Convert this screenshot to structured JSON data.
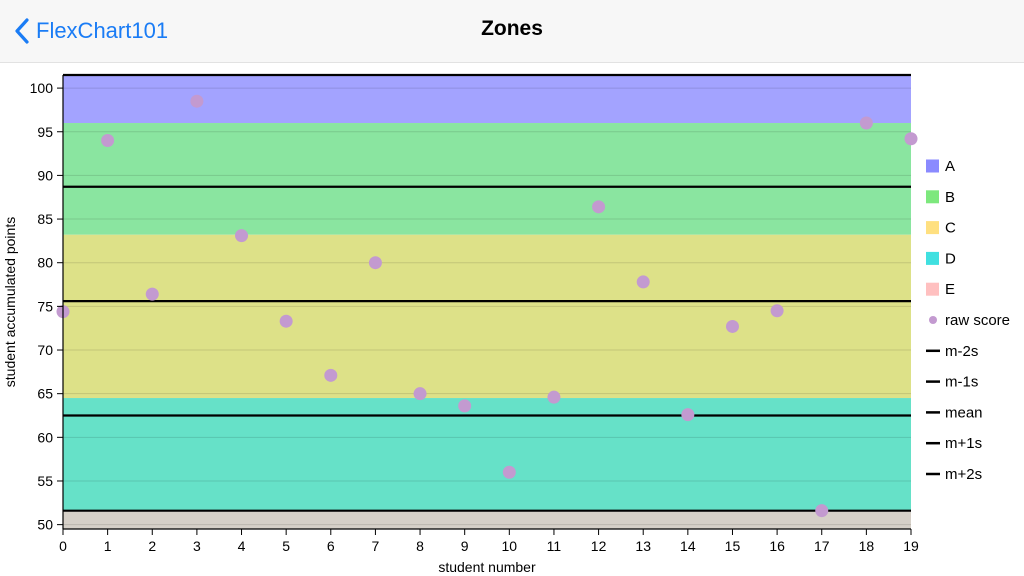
{
  "nav": {
    "back_label": "FlexChart101",
    "title": "Zones"
  },
  "chart_data": {
    "type": "scatter",
    "title": "",
    "xlabel": "student number",
    "ylabel": "student accumulated points",
    "xlim": [
      0,
      19
    ],
    "ylim": [
      49.5,
      101.5
    ],
    "x_ticks": [
      0,
      1,
      2,
      3,
      4,
      5,
      6,
      7,
      8,
      9,
      10,
      11,
      12,
      13,
      14,
      15,
      16,
      17,
      18,
      19
    ],
    "y_ticks": [
      50,
      55,
      60,
      65,
      70,
      75,
      80,
      85,
      90,
      95,
      100
    ],
    "zones": [
      {
        "name": "A",
        "from": 96.0,
        "to": 101.5,
        "color": "#a3a3ff"
      },
      {
        "name": "B",
        "from": 83.2,
        "to": 96.0,
        "color": "#8ae5a0"
      },
      {
        "name": "C",
        "from": 64.5,
        "to": 83.2,
        "color": "#dde188"
      },
      {
        "name": "D",
        "from": 51.5,
        "to": 64.5,
        "color": "#66e1c8"
      },
      {
        "name": "E",
        "from": 49.5,
        "to": 51.5,
        "color": "#d6d0c8"
      }
    ],
    "legend_colors": {
      "A": "#8a8aff",
      "B": "#7de87d",
      "C": "#ffe080",
      "D": "#40e0e0",
      "E": "#ffc0c0"
    },
    "series": [
      {
        "name": "raw score",
        "color": "#c39ad0",
        "x": [
          0,
          1,
          2,
          3,
          4,
          5,
          6,
          7,
          8,
          9,
          10,
          11,
          12,
          13,
          14,
          15,
          16,
          17,
          18,
          19
        ],
        "y": [
          74.4,
          94.0,
          76.4,
          98.5,
          83.1,
          73.3,
          67.1,
          80.0,
          65.0,
          63.6,
          56.0,
          64.6,
          86.4,
          77.8,
          62.6,
          72.7,
          74.5,
          51.6,
          96.0,
          94.2
        ]
      }
    ],
    "reference_lines": [
      {
        "name": "m-2s",
        "value": 51.6
      },
      {
        "name": "m-1s",
        "value": 62.5
      },
      {
        "name": "mean",
        "value": 75.6
      },
      {
        "name": "m+1s",
        "value": 88.7
      },
      {
        "name": "m+2s",
        "value": 101.5
      }
    ],
    "reference_color": "#000000",
    "legend": {
      "position": "right",
      "items": [
        "A",
        "B",
        "C",
        "D",
        "E",
        "raw score",
        "m-2s",
        "m-1s",
        "mean",
        "m+1s",
        "m+2s"
      ]
    }
  }
}
